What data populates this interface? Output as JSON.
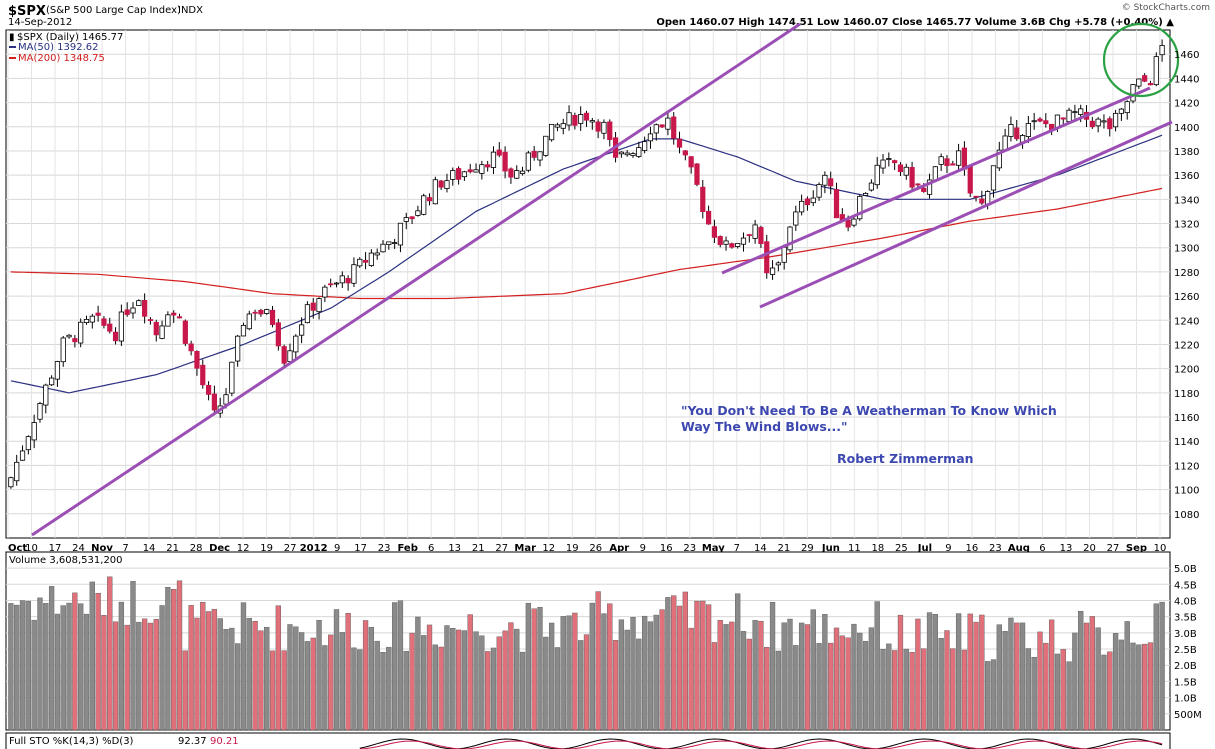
{
  "header": {
    "symbol": "$SPX",
    "name": "(S&P 500 Large Cap Index)",
    "exchange": "INDX",
    "date": "14-Sep-2012",
    "watermark": "© StockCharts.com",
    "quote_line": "Open 1460.07  High 1474.51  Low 1460.07  Close 1465.77  Volume 3.6B  Chg +5.78 (+0.40%) ▲"
  },
  "legend": {
    "price": "$SPX (Daily) 1465.77",
    "ma50": "MA(50) 1392.62",
    "ma200": "MA(200) 1348.75"
  },
  "annotation": {
    "quote_line1": "\"You Don't Need To Be A Weatherman To Know Which",
    "quote_line2": "Way The Wind Blows...\"",
    "author": "Robert Zimmerman"
  },
  "volume_panel": {
    "label": "Volume 3,608,531,200",
    "axis_labels": [
      "5.0B",
      "4.5B",
      "4.0B",
      "3.5B",
      "3.0B",
      "2.5B",
      "2.0B",
      "1.5B",
      "1.0B",
      "500M"
    ]
  },
  "sto_panel": {
    "label_prefix": "Full STO %K(14,3) %D(3)",
    "k_value": "92.37",
    "d_value": "90.21"
  },
  "colors": {
    "up": "#ffffff",
    "down": "#c8174a",
    "ma50": "#2b3180",
    "ma200": "#d42020",
    "trendline": "#9b4fb5",
    "circle": "#2aa244",
    "volume_up": "#8a8a8a",
    "volume_down": "#e0707a"
  },
  "chart_data": {
    "type": "candlestick",
    "title": "$SPX (S&P 500 Large Cap Index) INDX",
    "ylim": [
      1060,
      1480
    ],
    "y_ticks": [
      1080,
      1100,
      1120,
      1140,
      1160,
      1180,
      1200,
      1220,
      1240,
      1260,
      1280,
      1300,
      1320,
      1340,
      1360,
      1380,
      1400,
      1420,
      1440,
      1460
    ],
    "x_tick_labels": [
      "Oct",
      "10",
      "17",
      "24",
      "Nov",
      "7",
      "14",
      "21",
      "28",
      "Dec",
      "12",
      "19",
      "27",
      "2012",
      "9",
      "17",
      "23",
      "Feb",
      "6",
      "13",
      "21",
      "27",
      "Mar",
      "12",
      "19",
      "26",
      "Apr",
      "9",
      "16",
      "23",
      "May",
      "7",
      "14",
      "21",
      "29",
      "Jun",
      "11",
      "18",
      "25",
      "Jul",
      "9",
      "16",
      "23",
      "Aug",
      "6",
      "13",
      "20",
      "27",
      "Sep",
      "10"
    ],
    "close_path": [
      [
        0,
        1110
      ],
      [
        4,
        1160
      ],
      [
        9,
        1220
      ],
      [
        14,
        1240
      ],
      [
        18,
        1230
      ],
      [
        20,
        1250
      ],
      [
        22,
        1260
      ],
      [
        25,
        1230
      ],
      [
        27,
        1250
      ],
      [
        29,
        1240
      ],
      [
        32,
        1200
      ],
      [
        35,
        1160
      ],
      [
        37,
        1180
      ],
      [
        40,
        1240
      ],
      [
        42,
        1250
      ],
      [
        45,
        1240
      ],
      [
        47,
        1210
      ],
      [
        50,
        1240
      ],
      [
        53,
        1260
      ],
      [
        56,
        1270
      ],
      [
        59,
        1280
      ],
      [
        62,
        1295
      ],
      [
        65,
        1305
      ],
      [
        68,
        1320
      ],
      [
        71,
        1340
      ],
      [
        74,
        1355
      ],
      [
        77,
        1360
      ],
      [
        80,
        1370
      ],
      [
        83,
        1375
      ],
      [
        86,
        1360
      ],
      [
        88,
        1365
      ],
      [
        91,
        1385
      ],
      [
        94,
        1400
      ],
      [
        97,
        1408
      ],
      [
        99,
        1410
      ],
      [
        102,
        1400
      ],
      [
        104,
        1370
      ],
      [
        106,
        1380
      ],
      [
        108,
        1385
      ],
      [
        110,
        1400
      ],
      [
        113,
        1405
      ],
      [
        115,
        1380
      ],
      [
        118,
        1350
      ],
      [
        120,
        1320
      ],
      [
        123,
        1300
      ],
      [
        126,
        1310
      ],
      [
        128,
        1320
      ],
      [
        130,
        1275
      ],
      [
        132,
        1285
      ],
      [
        134,
        1320
      ],
      [
        137,
        1340
      ],
      [
        140,
        1360
      ],
      [
        142,
        1330
      ],
      [
        144,
        1320
      ],
      [
        146,
        1340
      ],
      [
        149,
        1365
      ],
      [
        152,
        1370
      ],
      [
        155,
        1355
      ],
      [
        157,
        1345
      ],
      [
        160,
        1370
      ],
      [
        163,
        1375
      ],
      [
        165,
        1345
      ],
      [
        167,
        1335
      ],
      [
        169,
        1370
      ],
      [
        172,
        1395
      ],
      [
        175,
        1400
      ],
      [
        178,
        1402
      ],
      [
        181,
        1405
      ],
      [
        183,
        1410
      ],
      [
        186,
        1405
      ],
      [
        189,
        1400
      ],
      [
        191,
        1410
      ],
      [
        193,
        1432
      ],
      [
        196,
        1440
      ],
      [
        198,
        1466
      ]
    ],
    "num_bars": 199,
    "ma50": [
      [
        0,
        1190
      ],
      [
        10,
        1180
      ],
      [
        25,
        1195
      ],
      [
        40,
        1220
      ],
      [
        55,
        1250
      ],
      [
        65,
        1280
      ],
      [
        80,
        1330
      ],
      [
        95,
        1365
      ],
      [
        110,
        1390
      ],
      [
        115,
        1390
      ],
      [
        125,
        1375
      ],
      [
        135,
        1355
      ],
      [
        150,
        1340
      ],
      [
        165,
        1340
      ],
      [
        180,
        1360
      ],
      [
        198,
        1393
      ]
    ],
    "ma200": [
      [
        0,
        1280
      ],
      [
        15,
        1278
      ],
      [
        30,
        1272
      ],
      [
        45,
        1262
      ],
      [
        60,
        1258
      ],
      [
        75,
        1258
      ],
      [
        95,
        1262
      ],
      [
        115,
        1282
      ],
      [
        130,
        1292
      ],
      [
        150,
        1308
      ],
      [
        165,
        1322
      ],
      [
        180,
        1332
      ],
      [
        198,
        1349
      ]
    ]
  }
}
